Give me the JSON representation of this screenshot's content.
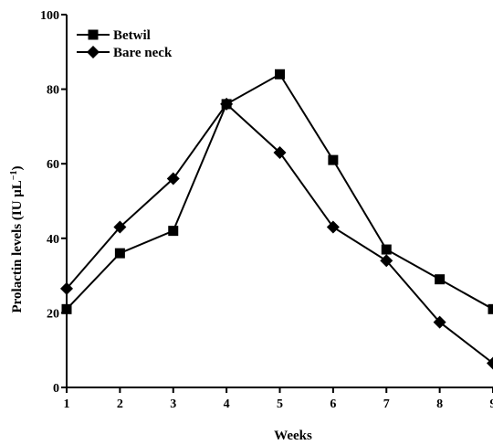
{
  "chart_data": {
    "type": "line",
    "title": "",
    "xlabel": "Weeks",
    "ylabel": "Prolactin levels (IU μL",
    "ylabel_superscript": "−1",
    "ylabel_suffix": ")",
    "x": [
      1,
      2,
      3,
      4,
      5,
      6,
      7,
      8,
      9
    ],
    "x_ticks": [
      "1",
      "2",
      "3",
      "4",
      "5",
      "6",
      "7",
      "8",
      "9"
    ],
    "y_ticks": [
      "0",
      "20",
      "40",
      "60",
      "80",
      "100"
    ],
    "xlim": [
      1,
      9
    ],
    "ylim": [
      0,
      100
    ],
    "grid": false,
    "legend_position": "top-left",
    "series": [
      {
        "name": "Betwil",
        "marker": "square",
        "color": "#000000",
        "values": [
          21,
          36,
          42,
          76,
          84,
          61,
          37,
          29,
          21
        ]
      },
      {
        "name": "Bare neck",
        "marker": "diamond",
        "color": "#000000",
        "values": [
          26.5,
          43,
          56,
          76,
          63,
          43,
          34,
          17.5,
          6.5
        ]
      }
    ]
  }
}
